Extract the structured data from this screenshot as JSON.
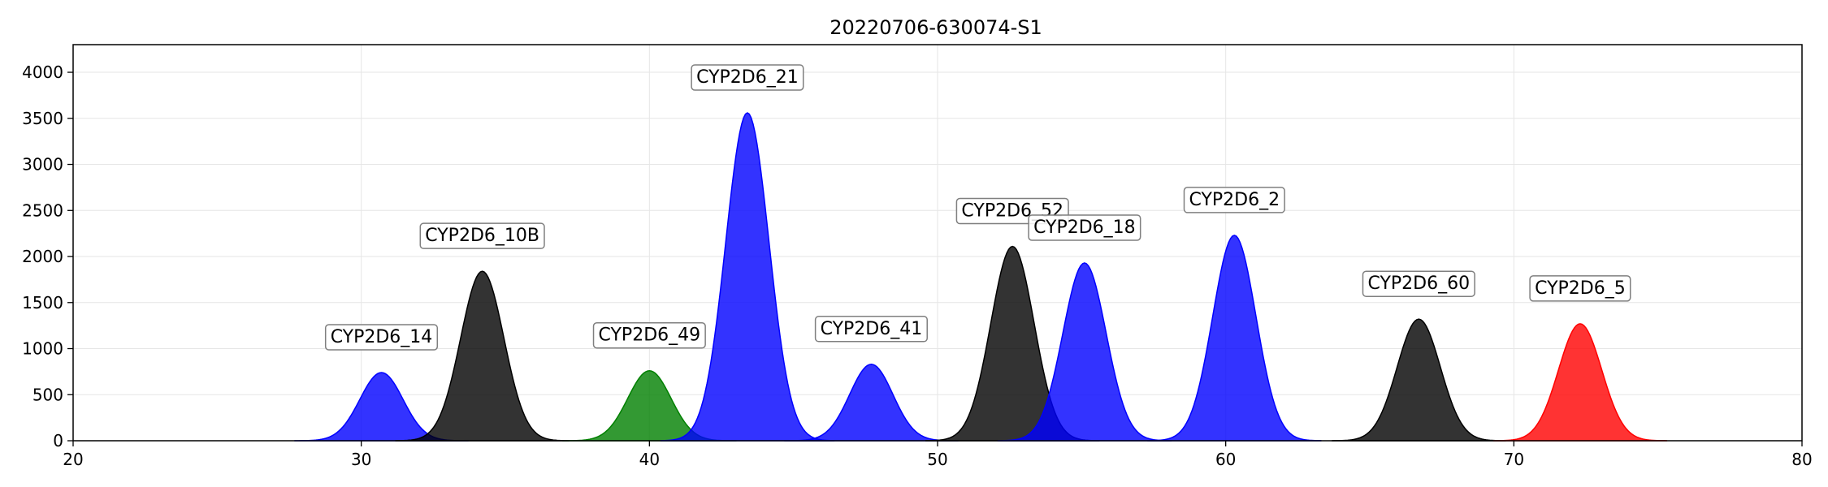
{
  "chart_data": {
    "type": "area",
    "title": "20220706-630074-S1",
    "xlabel": "",
    "ylabel": "",
    "xlim": [
      20,
      80
    ],
    "ylim": [
      0,
      4300
    ],
    "xticks": [
      20,
      30,
      40,
      50,
      60,
      70,
      80
    ],
    "yticks": [
      0,
      500,
      1000,
      1500,
      2000,
      2500,
      3000,
      3500,
      4000
    ],
    "grid": true,
    "legend": "none",
    "colors": {
      "blue": "#0000ff",
      "black": "#000000",
      "green": "#008000",
      "red": "#ff0000"
    },
    "series": [
      {
        "label": "CYP2D6_14",
        "center": 30.7,
        "height": 740,
        "sigma": 0.75,
        "color": "#0000ff"
      },
      {
        "label": "CYP2D6_10B",
        "center": 34.2,
        "height": 1840,
        "sigma": 0.75,
        "color": "#000000"
      },
      {
        "label": "CYP2D6_49",
        "center": 40.0,
        "height": 760,
        "sigma": 0.75,
        "color": "#008000"
      },
      {
        "label": "CYP2D6_21",
        "center": 43.4,
        "height": 3560,
        "sigma": 0.75,
        "color": "#0000ff"
      },
      {
        "label": "CYP2D6_41",
        "center": 47.7,
        "height": 830,
        "sigma": 0.75,
        "color": "#0000ff"
      },
      {
        "label": "CYP2D6_52",
        "center": 52.6,
        "height": 2110,
        "sigma": 0.75,
        "color": "#000000"
      },
      {
        "label": "CYP2D6_18",
        "center": 55.1,
        "height": 1930,
        "sigma": 0.75,
        "color": "#0000ff"
      },
      {
        "label": "CYP2D6_2",
        "center": 60.3,
        "height": 2230,
        "sigma": 0.75,
        "color": "#0000ff"
      },
      {
        "label": "CYP2D6_60",
        "center": 66.7,
        "height": 1320,
        "sigma": 0.75,
        "color": "#000000"
      },
      {
        "label": "CYP2D6_5",
        "center": 72.3,
        "height": 1270,
        "sigma": 0.75,
        "color": "#ff0000"
      }
    ]
  }
}
